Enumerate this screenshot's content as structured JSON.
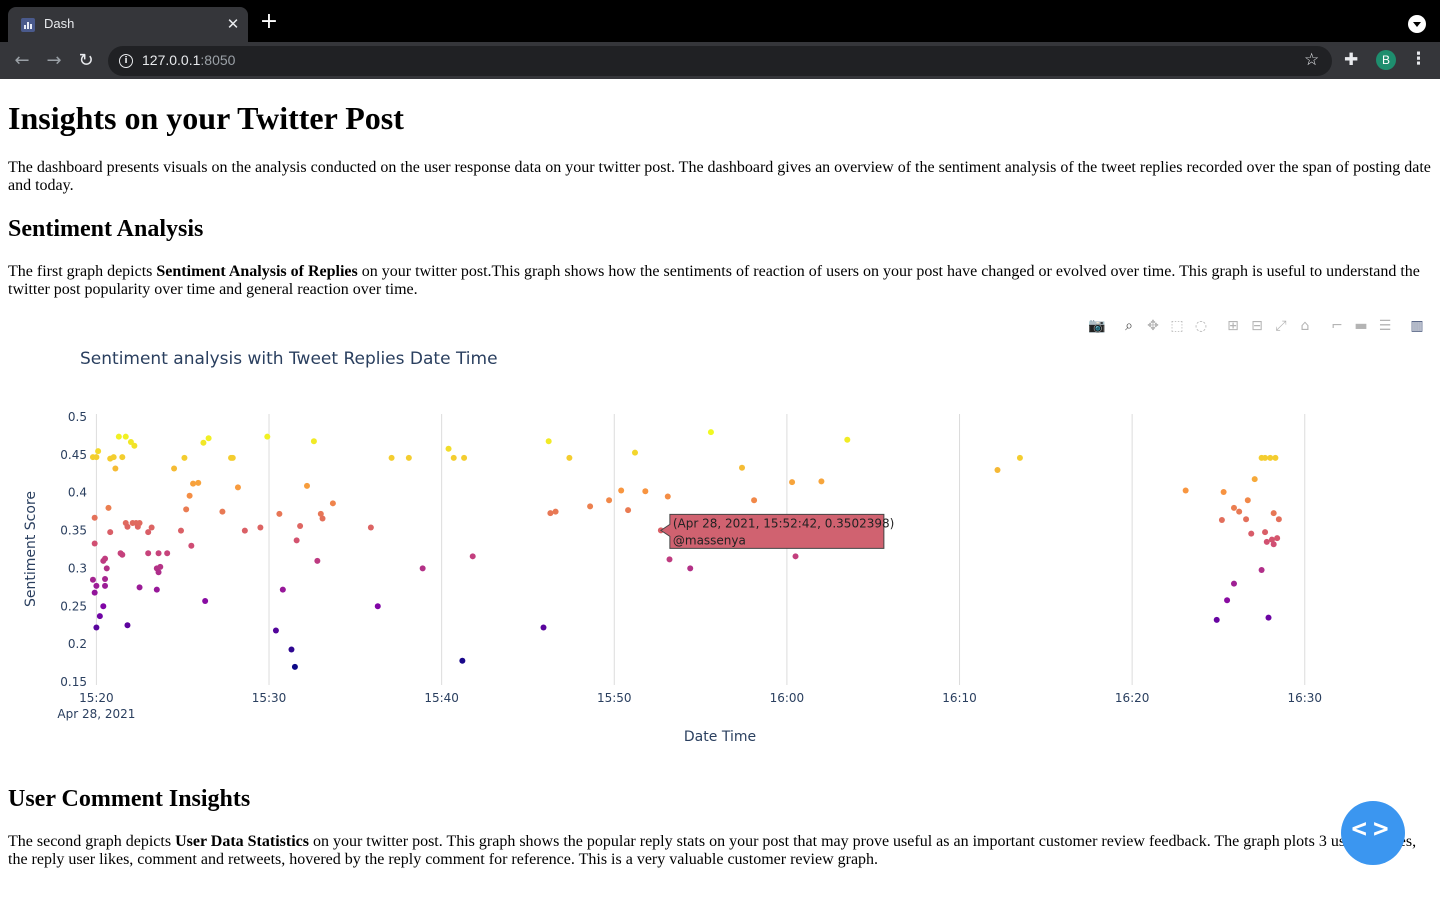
{
  "browser": {
    "tab_title": "Dash",
    "url_host": "127.0.0.1",
    "url_port": ":8050",
    "avatar_initial": "B",
    "icons": [
      "dash-favicon-icon",
      "close-icon",
      "plus-icon",
      "tab-search-icon",
      "back-icon",
      "forward-icon",
      "reload-icon",
      "info-icon",
      "star-icon",
      "extensions-icon",
      "kebab-menu-icon"
    ]
  },
  "page": {
    "title": "Insights on your Twitter Post",
    "intro": "The dashboard presents visuals on the analysis conducted on the user response data on your twitter post. The dashboard gives an overview of the sentiment analysis of the tweet replies recorded over the span of posting date and today.",
    "section1": {
      "heading": "Sentiment Analysis",
      "text_before": "The first graph depicts ",
      "text_bold": "Sentiment Analysis of Replies",
      "text_after": " on your twitter post.This graph shows how the sentiments of reaction of users on your post have changed or evolved over time. This graph is useful to understand the twitter post popularity over time and general reaction over time."
    },
    "section2": {
      "heading": "User Comment Insights",
      "text_before": "The second graph depicts ",
      "text_bold": "User Data Statistics",
      "text_after": " on your twitter post. This graph shows the popular reply stats on your post that may prove useful as an important customer review feedback. The graph plots 3 user features, the reply user likes, comment and retweets, hovered by the reply comment for reference. This is a very valuable customer review graph."
    }
  },
  "modebar": {
    "icons": [
      "camera-icon",
      "zoom-icon",
      "pan-icon",
      "box-select-icon",
      "lasso-icon",
      "zoom-in-icon",
      "zoom-out-icon",
      "autoscale-icon",
      "reset-axes-icon",
      "spike-lines-icon",
      "hover-closest-icon",
      "hover-compare-icon",
      "plotly-logo-icon"
    ]
  },
  "chart_data": {
    "type": "scatter",
    "title": "Sentiment analysis with Tweet Replies Date Time",
    "xlabel": "Date Time",
    "ylabel": "Sentiment Score",
    "date": "Apr 28, 2021",
    "x_unit": "minutes after 15:00 on Apr 28, 2021",
    "x_ticks": [
      20,
      30,
      40,
      50,
      60,
      70,
      80,
      90
    ],
    "x_tick_labels": [
      "15:20",
      "15:30",
      "15:40",
      "15:50",
      "16:00",
      "16:10",
      "16:20",
      "16:30"
    ],
    "xlim": [
      19.05,
      93.2
    ],
    "y_ticks": [
      0.15,
      0.2,
      0.25,
      0.3,
      0.35,
      0.4,
      0.45,
      0.5
    ],
    "y_tick_labels": [
      "0.15",
      "0.2",
      "0.25",
      "0.3",
      "0.35",
      "0.4",
      "0.45",
      "0.5"
    ],
    "ylim": [
      0.15,
      0.5
    ],
    "grid": "vertical",
    "colorscale": [
      "#0d0887",
      "#7e03a8",
      "#cc4778",
      "#f89540",
      "#f0f921"
    ],
    "color_by": "sentiment score",
    "tooltip": {
      "line1": "(Apr 28, 2021, 15:52:42, 0.3502398)",
      "line2": "@massenya",
      "x": 52.7,
      "y": 0.3502398,
      "color": "#d06270"
    },
    "points": [
      [
        19.8,
        0.447
      ],
      [
        20.0,
        0.447
      ],
      [
        20.1,
        0.455
      ],
      [
        19.9,
        0.367
      ],
      [
        19.9,
        0.333
      ],
      [
        19.8,
        0.285
      ],
      [
        20.0,
        0.277
      ],
      [
        19.9,
        0.268
      ],
      [
        20.0,
        0.222
      ],
      [
        20.2,
        0.237
      ],
      [
        20.4,
        0.25
      ],
      [
        20.4,
        0.31
      ],
      [
        20.5,
        0.313
      ],
      [
        20.5,
        0.286
      ],
      [
        20.5,
        0.277
      ],
      [
        20.6,
        0.3
      ],
      [
        20.7,
        0.38
      ],
      [
        20.8,
        0.348
      ],
      [
        20.8,
        0.445
      ],
      [
        21.0,
        0.447
      ],
      [
        21.1,
        0.432
      ],
      [
        21.3,
        0.474
      ],
      [
        21.4,
        0.32
      ],
      [
        21.5,
        0.447
      ],
      [
        21.5,
        0.318
      ],
      [
        21.7,
        0.474
      ],
      [
        21.7,
        0.36
      ],
      [
        21.8,
        0.355
      ],
      [
        21.8,
        0.225
      ],
      [
        22.0,
        0.467
      ],
      [
        22.1,
        0.36
      ],
      [
        22.2,
        0.462
      ],
      [
        22.3,
        0.36
      ],
      [
        22.4,
        0.355
      ],
      [
        22.5,
        0.36
      ],
      [
        22.5,
        0.275
      ],
      [
        23.0,
        0.348
      ],
      [
        23.0,
        0.32
      ],
      [
        23.2,
        0.354
      ],
      [
        23.5,
        0.3
      ],
      [
        23.5,
        0.272
      ],
      [
        23.6,
        0.32
      ],
      [
        23.6,
        0.295
      ],
      [
        23.7,
        0.302
      ],
      [
        24.1,
        0.32
      ],
      [
        24.5,
        0.432
      ],
      [
        24.9,
        0.35
      ],
      [
        25.1,
        0.446
      ],
      [
        25.2,
        0.378
      ],
      [
        25.4,
        0.396
      ],
      [
        25.5,
        0.33
      ],
      [
        25.6,
        0.412
      ],
      [
        25.9,
        0.413
      ],
      [
        26.2,
        0.466
      ],
      [
        26.3,
        0.257
      ],
      [
        26.5,
        0.472
      ],
      [
        27.3,
        0.375
      ],
      [
        27.8,
        0.446
      ],
      [
        27.9,
        0.446
      ],
      [
        28.2,
        0.407
      ],
      [
        28.6,
        0.35
      ],
      [
        29.5,
        0.354
      ],
      [
        29.9,
        0.474
      ],
      [
        30.4,
        0.218
      ],
      [
        30.6,
        0.372
      ],
      [
        30.8,
        0.272
      ],
      [
        31.3,
        0.193
      ],
      [
        31.5,
        0.17
      ],
      [
        31.6,
        0.337
      ],
      [
        31.8,
        0.356
      ],
      [
        32.2,
        0.409
      ],
      [
        32.6,
        0.468
      ],
      [
        32.8,
        0.31
      ],
      [
        33.0,
        0.372
      ],
      [
        33.1,
        0.366
      ],
      [
        33.7,
        0.386
      ],
      [
        35.9,
        0.354
      ],
      [
        36.3,
        0.25
      ],
      [
        37.1,
        0.446
      ],
      [
        38.1,
        0.446
      ],
      [
        38.9,
        0.3
      ],
      [
        40.4,
        0.458
      ],
      [
        40.7,
        0.446
      ],
      [
        41.2,
        0.178
      ],
      [
        41.3,
        0.446
      ],
      [
        41.8,
        0.316
      ],
      [
        45.9,
        0.222
      ],
      [
        46.2,
        0.468
      ],
      [
        46.3,
        0.373
      ],
      [
        46.6,
        0.375
      ],
      [
        47.4,
        0.446
      ],
      [
        48.6,
        0.382
      ],
      [
        49.7,
        0.39
      ],
      [
        50.4,
        0.403
      ],
      [
        50.8,
        0.377
      ],
      [
        51.2,
        0.453
      ],
      [
        51.8,
        0.402
      ],
      [
        52.7,
        0.3502398
      ],
      [
        53.1,
        0.395
      ],
      [
        53.2,
        0.312
      ],
      [
        54.4,
        0.3
      ],
      [
        55.6,
        0.48
      ],
      [
        57.4,
        0.433
      ],
      [
        58.1,
        0.39
      ],
      [
        60.3,
        0.414
      ],
      [
        60.5,
        0.316
      ],
      [
        62.0,
        0.415
      ],
      [
        63.5,
        0.47
      ],
      [
        72.2,
        0.43
      ],
      [
        73.5,
        0.446
      ],
      [
        83.1,
        0.403
      ],
      [
        84.9,
        0.232
      ],
      [
        85.2,
        0.364
      ],
      [
        85.3,
        0.401
      ],
      [
        85.5,
        0.258
      ],
      [
        85.9,
        0.28
      ],
      [
        85.9,
        0.38
      ],
      [
        86.2,
        0.375
      ],
      [
        86.6,
        0.365
      ],
      [
        86.7,
        0.39
      ],
      [
        86.9,
        0.346
      ],
      [
        87.1,
        0.418
      ],
      [
        87.5,
        0.446
      ],
      [
        87.5,
        0.298
      ],
      [
        87.7,
        0.348
      ],
      [
        87.7,
        0.446
      ],
      [
        87.8,
        0.335
      ],
      [
        87.9,
        0.235
      ],
      [
        88.0,
        0.446
      ],
      [
        88.1,
        0.338
      ],
      [
        88.2,
        0.332
      ],
      [
        88.2,
        0.373
      ],
      [
        88.3,
        0.446
      ],
      [
        88.4,
        0.34
      ],
      [
        88.5,
        0.365
      ]
    ]
  }
}
